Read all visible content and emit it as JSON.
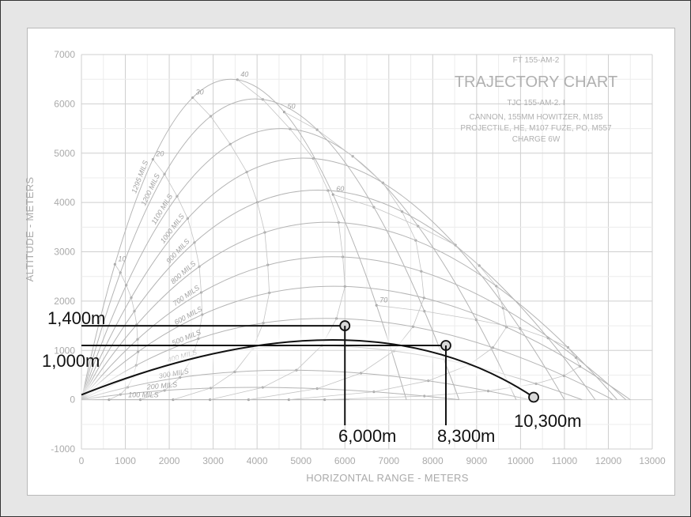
{
  "chart_data": {
    "type": "line",
    "header": {
      "ref": "FT 155-AM-2",
      "title": "TRAJECTORY CHART",
      "line1": "TJC 155-AM-2.  I",
      "line2": "CANNON, 155MM HOWITZER, M185",
      "line3": "PROJECTILE, HE, M107    FUZE, PO, M557",
      "line4": "CHARGE 6W"
    },
    "xlabel": "HORIZONTAL RANGE - METERS",
    "ylabel": "ALTITUDE - METERS",
    "xlim": [
      0,
      13000
    ],
    "ylim": [
      -1000,
      7000
    ],
    "xticks": [
      0,
      1000,
      2000,
      3000,
      4000,
      5000,
      6000,
      7000,
      8000,
      9000,
      10000,
      11000,
      12000,
      13000
    ],
    "yticks": [
      -1000,
      0,
      1000,
      2000,
      3000,
      4000,
      5000,
      6000,
      7000
    ],
    "grid": true,
    "trajectories": [
      {
        "label": "1295 MILS",
        "range": 7400,
        "apex": 6500
      },
      {
        "label": "1200 MILS",
        "range": 8600,
        "apex": 6100
      },
      {
        "label": "1100 MILS",
        "range": 9900,
        "apex": 5500
      },
      {
        "label": "1000 MILS",
        "range": 11000,
        "apex": 4900
      },
      {
        "label": "900 MILS",
        "range": 11700,
        "apex": 4250
      },
      {
        "label": "800 MILS",
        "range": 12200,
        "apex": 3600
      },
      {
        "label": "700 MILS",
        "range": 12400,
        "apex": 2900
      },
      {
        "label": "600 MILS",
        "range": 12500,
        "apex": 2300
      },
      {
        "label": "500 MILS",
        "range": 12100,
        "apex": 1650
      },
      {
        "label": "400 MILS",
        "range": 11400,
        "apex": 1100
      },
      {
        "label": "300 MILS",
        "range": 10200,
        "apex": 600
      },
      {
        "label": "200 MILS",
        "range": 8600,
        "apex": 250
      },
      {
        "label": "100 MILS",
        "range": 6100,
        "apex": 0
      }
    ],
    "time_labels": [
      "10",
      "20",
      "30",
      "40",
      "50",
      "60",
      "70"
    ],
    "highlight_path": {
      "start": [
        0,
        100
      ],
      "control": [
        6400,
        2350
      ],
      "end": [
        10300,
        50
      ]
    },
    "annotations": [
      {
        "text": "1,400m",
        "x": 6000,
        "y": 1500,
        "type": "horizontal"
      },
      {
        "text": "1,000m",
        "x": 8300,
        "y": 1100,
        "type": "horizontal"
      },
      {
        "text": "6,000m",
        "x": 6000,
        "y": 1500,
        "type": "vertical"
      },
      {
        "text": "8,300m",
        "x": 8300,
        "y": 1100,
        "type": "vertical"
      },
      {
        "text": "10,300m",
        "x": 10300,
        "y": 50,
        "type": "impact"
      }
    ]
  }
}
